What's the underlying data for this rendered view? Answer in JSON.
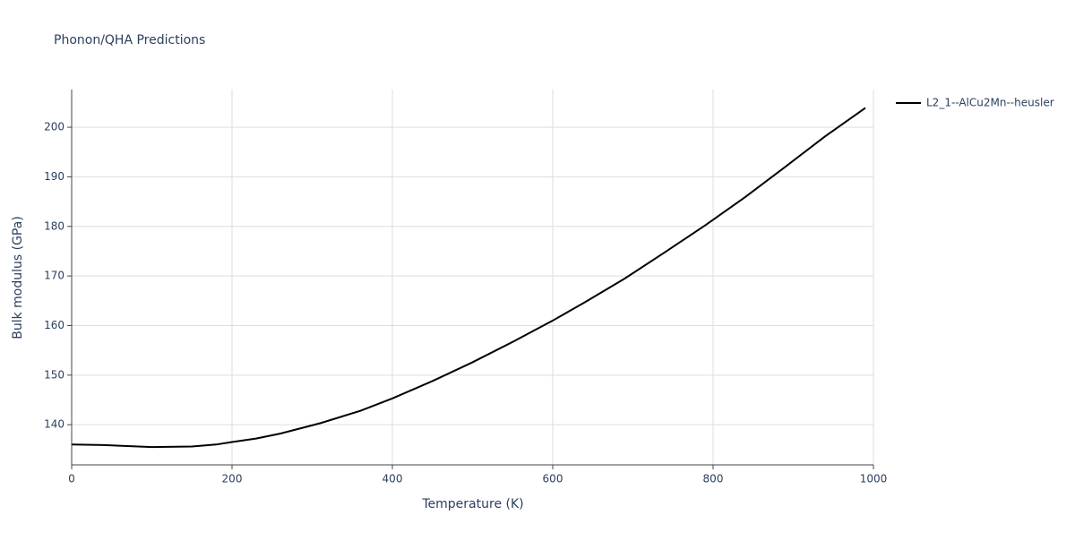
{
  "chart_data": {
    "type": "line",
    "title": "Phonon/QHA Predictions",
    "x_label": "Temperature (K)",
    "y_label": "Bulk modulus (GPa)",
    "x": [
      0,
      40,
      100,
      150,
      180,
      200,
      230,
      260,
      310,
      360,
      400,
      450,
      500,
      550,
      600,
      640,
      690,
      740,
      790,
      840,
      890,
      940,
      990
    ],
    "series": [
      {
        "name": "L2_1--AlCu2Mn--heusler",
        "color": "#000000",
        "values": [
          136.0,
          135.9,
          135.5,
          135.6,
          136.0,
          136.5,
          137.2,
          138.2,
          140.3,
          142.8,
          145.3,
          148.8,
          152.6,
          156.7,
          161.0,
          164.7,
          169.5,
          174.8,
          180.2,
          185.9,
          192.0,
          198.2,
          203.9
        ]
      }
    ],
    "xlim": [
      0,
      1000
    ],
    "xticks": [
      0,
      200,
      400,
      600,
      800,
      1000
    ],
    "ylim": [
      131.9,
      207.6
    ],
    "yticks": [
      140,
      150,
      160,
      170,
      180,
      190,
      200
    ],
    "grid": true,
    "legend": "top-right"
  }
}
